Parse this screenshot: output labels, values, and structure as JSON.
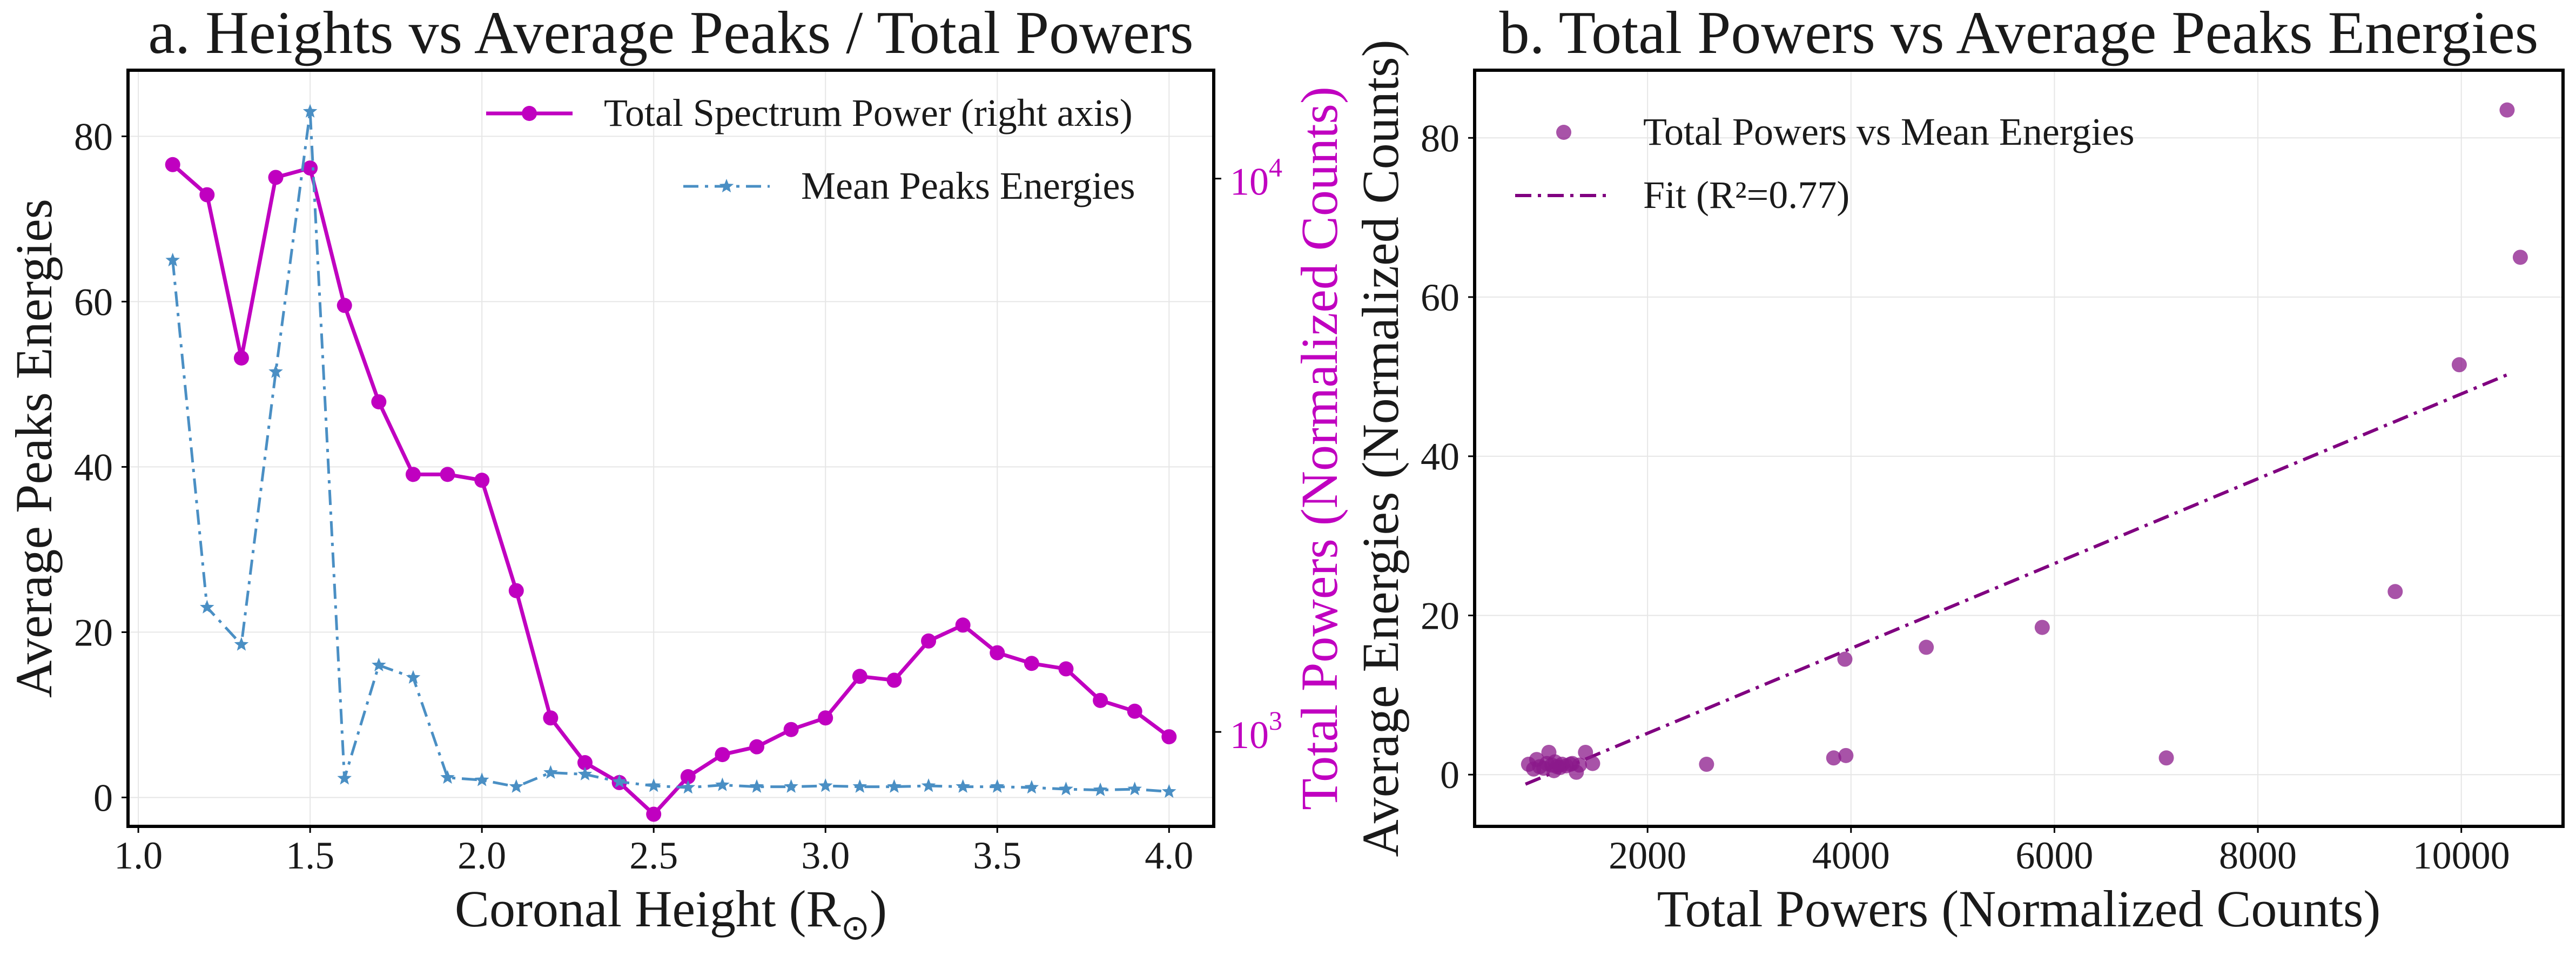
{
  "chart_data": [
    {
      "panel": "a",
      "type": "line",
      "title": "a. Heights vs Average Peaks / Total Powers",
      "xlabel": "Coronal Height (R",
      "xlabel_sub": "⊙",
      "xlabel_close": ")",
      "ylabel_left": "Average Peaks Energies",
      "ylabel_right": "Total Powers (Normalized Counts)",
      "xlim": [
        0.97,
        4.13
      ],
      "ylim_left": [
        -3.5,
        88
      ],
      "ylim_right_log": [
        675,
        15700
      ],
      "right_axis_scale": "log",
      "xticks": [
        1.0,
        1.5,
        2.0,
        2.5,
        3.0,
        3.5,
        4.0
      ],
      "xtick_labels": [
        "1.0",
        "1.5",
        "2.0",
        "2.5",
        "3.0",
        "3.5",
        "4.0"
      ],
      "yticks_left": [
        0,
        20,
        40,
        60,
        80
      ],
      "ytick_labels_left": [
        "0",
        "20",
        "40",
        "60",
        "80"
      ],
      "yticks_right": [
        1000,
        10000
      ],
      "ytick_labels_right": [
        {
          "base": "10",
          "exp": "3"
        },
        {
          "base": "10",
          "exp": "4"
        }
      ],
      "grid": true,
      "legend_position": "top-right",
      "x": [
        1.1,
        1.2,
        1.3,
        1.4,
        1.5,
        1.6,
        1.7,
        1.8,
        1.9,
        2.0,
        2.1,
        2.2,
        2.3,
        2.4,
        2.5,
        2.6,
        2.7,
        2.8,
        2.9,
        3.0,
        3.1,
        3.2,
        3.3,
        3.4,
        3.5,
        3.6,
        3.7,
        3.8,
        3.9,
        4.0
      ],
      "series": [
        {
          "name": "Total Spectrum Power (right axis)",
          "axis": "right",
          "color": "#c000c0",
          "marker": "circle",
          "line_style": "solid",
          "values": [
            10600,
            9350,
            4740,
            10050,
            10450,
            5900,
            3950,
            2920,
            2920,
            2850,
            1800,
            1060,
            880,
            810,
            710,
            830,
            910,
            940,
            1010,
            1060,
            1260,
            1240,
            1460,
            1560,
            1390,
            1330,
            1300,
            1140,
            1090,
            980
          ]
        },
        {
          "name": "Mean Peaks Energies",
          "axis": "left",
          "color": "#4a8fc4",
          "marker": "star",
          "line_style": "dashdot",
          "values": [
            65,
            23,
            18.5,
            51.5,
            83,
            2.3,
            16,
            14.5,
            2.4,
            2.1,
            1.3,
            3.0,
            2.8,
            1.9,
            1.4,
            1.2,
            1.5,
            1.3,
            1.3,
            1.4,
            1.3,
            1.3,
            1.4,
            1.3,
            1.3,
            1.2,
            1.0,
            0.9,
            1.0,
            0.7
          ]
        }
      ]
    },
    {
      "panel": "b",
      "type": "scatter",
      "title": "b. Total Powers vs Average Peaks Energies",
      "xlabel": "Total Powers (Normalized Counts)",
      "ylabel": "Average Energies (Normalized Counts)",
      "xlim": [
        300,
        11000
      ],
      "ylim": [
        -6.5,
        88.5
      ],
      "xticks": [
        2000,
        4000,
        6000,
        8000,
        10000
      ],
      "xtick_labels": [
        "2000",
        "4000",
        "6000",
        "8000",
        "10000"
      ],
      "yticks": [
        0,
        20,
        40,
        60,
        80
      ],
      "ytick_labels": [
        "0",
        "20",
        "40",
        "60",
        "80"
      ],
      "grid": true,
      "legend_position": "top-left",
      "scatter_name": "Total Powers vs Mean Energies",
      "scatter_color": "#8b1a8b",
      "fit_name": "Fit (R²=0.77)",
      "fit_color": "#800080",
      "fit_line": {
        "x": [
          800,
          10500
        ],
        "y": [
          -1.2,
          50.5
        ]
      },
      "points": [
        {
          "x": 10450,
          "y": 83.5
        },
        {
          "x": 10580,
          "y": 65
        },
        {
          "x": 9980,
          "y": 51.5
        },
        {
          "x": 9350,
          "y": 23
        },
        {
          "x": 5880,
          "y": 18.5
        },
        {
          "x": 4740,
          "y": 16
        },
        {
          "x": 3940,
          "y": 14.5
        },
        {
          "x": 3950,
          "y": 2.4
        },
        {
          "x": 3830,
          "y": 2.1
        },
        {
          "x": 7100,
          "y": 2.1
        },
        {
          "x": 2580,
          "y": 1.3
        },
        {
          "x": 830,
          "y": 1.3
        },
        {
          "x": 880,
          "y": 0.7
        },
        {
          "x": 910,
          "y": 1.9
        },
        {
          "x": 940,
          "y": 1.0
        },
        {
          "x": 980,
          "y": 0.8
        },
        {
          "x": 1010,
          "y": 1.4
        },
        {
          "x": 1030,
          "y": 2.8
        },
        {
          "x": 1060,
          "y": 1.2
        },
        {
          "x": 1080,
          "y": 0.5
        },
        {
          "x": 1090,
          "y": 1.6
        },
        {
          "x": 1110,
          "y": 1.0
        },
        {
          "x": 1140,
          "y": 0.9
        },
        {
          "x": 1160,
          "y": 1.3
        },
        {
          "x": 1200,
          "y": 1.1
        },
        {
          "x": 1240,
          "y": 1.3
        },
        {
          "x": 1260,
          "y": 1.4
        },
        {
          "x": 1300,
          "y": 0.3
        },
        {
          "x": 1330,
          "y": 1.2
        },
        {
          "x": 1390,
          "y": 2.8
        },
        {
          "x": 1460,
          "y": 1.4
        }
      ]
    }
  ]
}
